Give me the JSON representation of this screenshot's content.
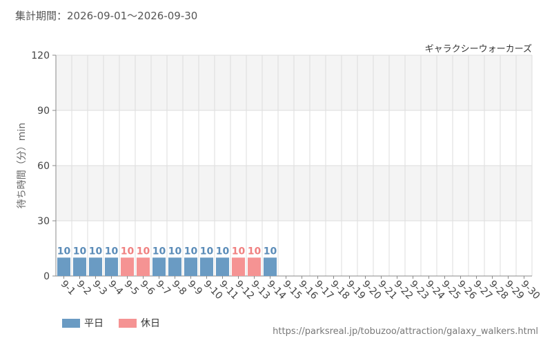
{
  "header": {
    "period": "集計期間：2026-09-01～2026-09-30"
  },
  "footer": {
    "url": "https://parksreal.jp/tobuzoo/attraction/galaxy_walkers.html"
  },
  "legend": {
    "weekday_label": "平日",
    "holiday_label": "休日"
  },
  "colors": {
    "weekday": "#6a9bc3",
    "holiday": "#f59393",
    "weekday_text": "#5b8cb8",
    "holiday_text": "#f08080",
    "band": "#f4f4f4",
    "grid": "#dddddd"
  },
  "chart_data": {
    "type": "bar",
    "title": "ギャラクシーウォーカーズ",
    "ylabel": "待ち時間（分）min",
    "xlabel": "",
    "ylim": [
      0,
      120
    ],
    "yticks": [
      0,
      30,
      60,
      90,
      120
    ],
    "grid": true,
    "legend_position": "bottom-left",
    "categories": [
      "9-1",
      "9-2",
      "9-3",
      "9-4",
      "9-5",
      "9-6",
      "9-7",
      "9-8",
      "9-9",
      "9-10",
      "9-11",
      "9-12",
      "9-13",
      "9-14",
      "9-15",
      "9-16",
      "9-17",
      "9-18",
      "9-19",
      "9-20",
      "9-21",
      "9-22",
      "9-23",
      "9-24",
      "9-25",
      "9-26",
      "9-27",
      "9-28",
      "9-29",
      "9-30"
    ],
    "values": [
      10,
      10,
      10,
      10,
      10,
      10,
      10,
      10,
      10,
      10,
      10,
      10,
      10,
      10,
      null,
      null,
      null,
      null,
      null,
      null,
      null,
      null,
      null,
      null,
      null,
      null,
      null,
      null,
      null,
      null
    ],
    "holiday": [
      false,
      false,
      false,
      false,
      true,
      true,
      false,
      false,
      false,
      false,
      false,
      true,
      true,
      false,
      false,
      false,
      false,
      false,
      true,
      true,
      true,
      true,
      true,
      false,
      false,
      true,
      true,
      false,
      false,
      false
    ]
  }
}
